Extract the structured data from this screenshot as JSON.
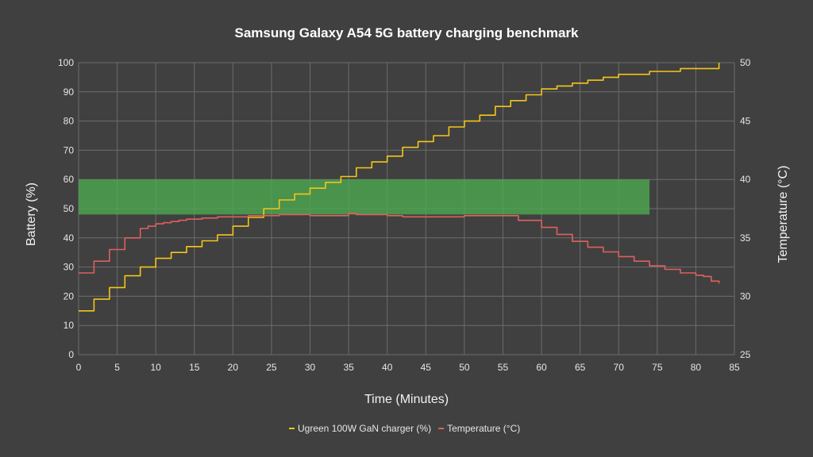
{
  "chart_data": {
    "type": "line",
    "title": "Samsung Galaxy A54 5G battery charging benchmark",
    "xlabel": "Time (Minutes)",
    "ylabel": "Battery (%)",
    "y2label": "Temperature (°C)",
    "xlim": [
      0,
      85
    ],
    "ylim": [
      0,
      100
    ],
    "y2lim": [
      25,
      50
    ],
    "x_ticks": [
      0,
      5,
      10,
      15,
      20,
      25,
      30,
      35,
      40,
      45,
      50,
      55,
      60,
      65,
      70,
      75,
      80,
      85
    ],
    "y_ticks": [
      0,
      10,
      20,
      30,
      40,
      50,
      60,
      70,
      80,
      90,
      100
    ],
    "y2_ticks": [
      25,
      30,
      35,
      40,
      45,
      50
    ],
    "grid": true,
    "legend_position": "bottom",
    "highlight_band": {
      "x": [
        0,
        74
      ],
      "y": [
        48,
        60
      ],
      "color": "#4caf50"
    },
    "series": [
      {
        "name": "Ugreen 100W GaN charger (%)",
        "axis": "left",
        "color": "#f5c518",
        "x": [
          0,
          2,
          4,
          6,
          8,
          10,
          12,
          14,
          16,
          18,
          20,
          22,
          24,
          26,
          28,
          30,
          32,
          34,
          36,
          38,
          40,
          42,
          44,
          46,
          48,
          50,
          52,
          54,
          56,
          58,
          60,
          62,
          64,
          66,
          68,
          70,
          72,
          74,
          76,
          78,
          80,
          82,
          83
        ],
        "values": [
          15,
          19,
          23,
          27,
          30,
          33,
          35,
          37,
          39,
          41,
          44,
          47,
          50,
          53,
          55,
          57,
          59,
          61,
          64,
          66,
          68,
          71,
          73,
          75,
          78,
          80,
          82,
          85,
          87,
          89,
          91,
          92,
          93,
          94,
          95,
          96,
          96,
          97,
          97,
          98,
          98,
          98,
          100
        ]
      },
      {
        "name": "Temperature (°C)",
        "axis": "right",
        "color": "#e05f5f",
        "x": [
          0,
          2,
          4,
          6,
          8,
          9,
          10,
          11,
          12,
          13,
          14,
          16,
          18,
          20,
          22,
          25,
          26,
          30,
          34,
          35,
          36,
          40,
          42,
          45,
          50,
          55,
          57,
          60,
          62,
          64,
          66,
          68,
          70,
          72,
          74,
          76,
          78,
          80,
          81,
          82,
          83
        ],
        "values": [
          32.0,
          33.0,
          34.0,
          35.0,
          35.8,
          36.0,
          36.2,
          36.3,
          36.4,
          36.5,
          36.6,
          36.7,
          36.8,
          36.8,
          36.9,
          36.9,
          37.0,
          36.9,
          36.9,
          37.1,
          37.0,
          36.9,
          36.8,
          36.8,
          36.9,
          36.9,
          36.5,
          35.9,
          35.3,
          34.7,
          34.2,
          33.8,
          33.4,
          33.0,
          32.6,
          32.3,
          32.0,
          31.8,
          31.7,
          31.3,
          31.1
        ]
      }
    ]
  }
}
